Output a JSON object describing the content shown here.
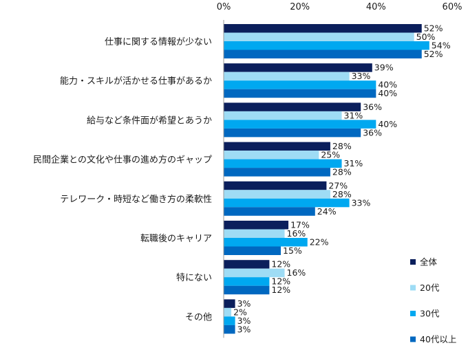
{
  "chart_data": {
    "type": "bar",
    "orientation": "horizontal",
    "categories": [
      "仕事に関する情報が少ない",
      "能力・スキルが活かせる仕事があるか",
      "給与など条件面が希望とあうか",
      "民間企業との文化や仕事の進め方のギャップ",
      "テレワーク・時短など働き方の柔軟性",
      "転職後のキャリア",
      "特にない",
      "その他"
    ],
    "series": [
      {
        "name": "全体",
        "color": "#0b1f5c",
        "values": [
          52,
          39,
          36,
          28,
          27,
          17,
          12,
          3
        ]
      },
      {
        "name": "20代",
        "color": "#9edcf5",
        "values": [
          50,
          33,
          31,
          25,
          28,
          16,
          16,
          2
        ]
      },
      {
        "name": "30代",
        "color": "#00a8f0",
        "values": [
          54,
          40,
          40,
          31,
          33,
          22,
          12,
          3
        ]
      },
      {
        "name": "40代以上",
        "color": "#0068c0",
        "values": [
          52,
          40,
          36,
          28,
          24,
          15,
          12,
          3
        ]
      }
    ],
    "xlim": [
      0,
      60
    ],
    "xticks": [
      0,
      20,
      40,
      60
    ],
    "tick_suffix": "%",
    "value_suffix": "%",
    "legend_position": "bottom-right",
    "grid": false
  }
}
